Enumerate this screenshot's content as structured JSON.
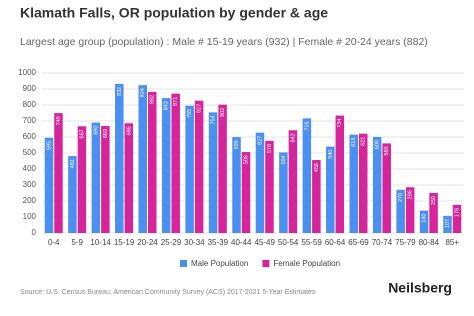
{
  "chart_data": {
    "type": "bar",
    "title": "Klamath Falls, OR population by gender & age",
    "subtitle": "Largest age group (population) : Male # 15-19 years (932) | Female # 20-24 years (882)",
    "categories": [
      "0-4",
      "5-9",
      "10-14",
      "15-19",
      "20-24",
      "25-29",
      "30-34",
      "35-39",
      "40-44",
      "45-49",
      "50-54",
      "55-59",
      "60-64",
      "65-69",
      "70-74",
      "75-79",
      "80-84",
      "85+"
    ],
    "series": [
      {
        "name": "Male Population",
        "color": "#4b8ff0",
        "values": [
          595,
          481,
          690,
          932,
          924,
          843,
          795,
          754,
          599,
          627,
          504,
          716,
          540,
          615,
          600,
          270,
          140,
          107
        ]
      },
      {
        "name": "Female Population",
        "color": "#d6259b",
        "values": [
          749,
          667,
          669,
          686,
          882,
          871,
          827,
          802,
          506,
          576,
          642,
          456,
          734,
          621,
          560,
          286,
          250,
          176
        ]
      }
    ],
    "ylim": [
      0,
      1000
    ],
    "yticks": [
      0,
      100,
      200,
      300,
      400,
      500,
      600,
      700,
      800,
      900,
      1000
    ],
    "grid": true,
    "source": "Source: U.S. Census Bureau, American Community Survey (ACS) 2017-2021 5-Year Estimates",
    "brand": "Neilsberg"
  }
}
